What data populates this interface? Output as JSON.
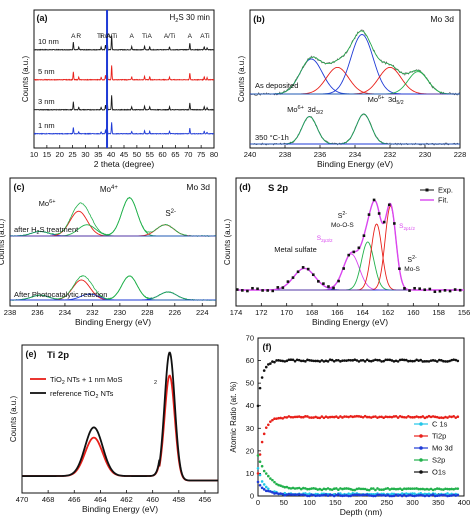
{
  "chart_data": [
    {
      "panel": "(a)",
      "type": "line",
      "title": "H2S 30 min",
      "xlabel": "2 theta (degree)",
      "ylabel": "Counts (a.u.)",
      "xlim": [
        10,
        80
      ],
      "xticks": [
        10,
        15,
        20,
        25,
        30,
        35,
        40,
        45,
        50,
        55,
        60,
        65,
        70,
        75,
        80
      ],
      "series": [
        {
          "name": "10 nm",
          "color": "#1a1a1a"
        },
        {
          "name": "5 nm",
          "color": "#e8201a"
        },
        {
          "name": "3 nm",
          "color": "#1a1a1a"
        },
        {
          "name": "1 nm",
          "color": "#1f3bd6"
        }
      ],
      "peaks": [
        {
          "x": 25.3,
          "h": 0.3
        },
        {
          "x": 27.4,
          "h": 0.1
        },
        {
          "x": 36.1,
          "h": 0.1
        },
        {
          "x": 37.8,
          "h": 0.18
        },
        {
          "x": 38.4,
          "h": 0.7
        },
        {
          "x": 40.2,
          "h": 0.55
        },
        {
          "x": 48.0,
          "h": 0.12
        },
        {
          "x": 53.0,
          "h": 0.14
        },
        {
          "x": 55.0,
          "h": 0.12
        },
        {
          "x": 62.7,
          "h": 0.11
        },
        {
          "x": 70.6,
          "h": 0.26
        },
        {
          "x": 76.2,
          "h": 0.12
        },
        {
          "x": 77.3,
          "h": 0.08
        }
      ],
      "peak_labels": [
        {
          "text": "A",
          "x": 25.3
        },
        {
          "text": "R",
          "x": 27.4
        },
        {
          "text": "Ti",
          "x": 35.5
        },
        {
          "text": "R/A",
          "x": 37.8
        },
        {
          "text": "A/Ti",
          "x": 40.2
        },
        {
          "text": "A",
          "x": 48.0
        },
        {
          "text": "Ti",
          "x": 53.0
        },
        {
          "text": "A",
          "x": 55.0
        },
        {
          "text": "A/Ti",
          "x": 62.7
        },
        {
          "text": "A",
          "x": 70.6
        },
        {
          "text": "A",
          "x": 75.5
        },
        {
          "text": "Ti",
          "x": 77.3
        }
      ]
    },
    {
      "panel": "(b)",
      "type": "line",
      "title": "Mo 3d",
      "xlabel": "Binding Energy (eV)",
      "ylabel": "Counts (a.u.)",
      "xlim": [
        240,
        228
      ],
      "xticks": [
        240,
        238,
        236,
        234,
        232,
        230,
        228
      ],
      "annotations": [
        "As deposited",
        "350 °C-1h",
        "Mo6+ 3d3/2",
        "Mo6+ 3d5/2"
      ],
      "upper_components": [
        {
          "center": 236.5,
          "amp": 0.5,
          "width": 0.9,
          "color": "#1f3bd6"
        },
        {
          "center": 235.0,
          "amp": 0.38,
          "width": 0.9,
          "color": "#e8201a"
        },
        {
          "center": 233.6,
          "amp": 0.85,
          "width": 0.9,
          "color": "#1f3bd6"
        },
        {
          "center": 232.0,
          "amp": 0.38,
          "width": 0.9,
          "color": "#e8201a"
        },
        {
          "center": 230.4,
          "amp": 0.32,
          "width": 0.8,
          "color": "#22b14c"
        }
      ],
      "lower_components": [
        {
          "center": 236.6,
          "amp": 0.55,
          "width": 0.6,
          "color": "#1f3bd6"
        },
        {
          "center": 233.5,
          "amp": 0.6,
          "width": 0.6,
          "color": "#1f3bd6"
        }
      ]
    },
    {
      "panel": "(c)",
      "type": "line",
      "title": "Mo 3d",
      "xlabel": "Binding Energy (eV)",
      "ylabel": "Counts (a.u.)",
      "xlim": [
        238,
        223
      ],
      "xticks": [
        238,
        236,
        234,
        232,
        230,
        228,
        226,
        224
      ],
      "annotations": [
        "Mo4+",
        "Mo6+",
        "S2-",
        "after H2S treatment",
        "After Photocatalytic reaction"
      ],
      "upper_components": [
        {
          "center": 235.8,
          "amp": 0.1,
          "width": 0.9,
          "color": "#1f3bd6"
        },
        {
          "center": 233.0,
          "amp": 0.55,
          "width": 0.9,
          "color": "#e8201a"
        },
        {
          "center": 232.4,
          "amp": 0.25,
          "width": 0.9,
          "color": "#22b14c"
        },
        {
          "center": 229.3,
          "amp": 0.85,
          "width": 0.8,
          "color": "#22b14c"
        },
        {
          "center": 226.7,
          "amp": 0.25,
          "width": 0.9,
          "color": "#e8201a"
        }
      ],
      "lower_components": [
        {
          "center": 235.8,
          "amp": 0.12,
          "width": 0.9,
          "color": "#1f3bd6"
        },
        {
          "center": 232.8,
          "amp": 0.5,
          "width": 0.9,
          "color": "#e8201a"
        },
        {
          "center": 232.2,
          "amp": 0.15,
          "width": 0.9,
          "color": "#1f3bd6"
        },
        {
          "center": 229.3,
          "amp": 0.6,
          "width": 0.8,
          "color": "#22b14c"
        },
        {
          "center": 226.5,
          "amp": 0.2,
          "width": 0.9,
          "color": "#1f3bd6"
        }
      ]
    },
    {
      "panel": "(d)",
      "type": "line",
      "title": "S 2p",
      "xlabel": "Binding Energy (eV)",
      "ylabel": "Counts (a.u.)",
      "xlim": [
        174,
        156
      ],
      "xticks": [
        174,
        172,
        170,
        168,
        166,
        164,
        162,
        160,
        158,
        156
      ],
      "legend": [
        "Exp.",
        "Fit."
      ],
      "annotations": [
        "Metal sulfate",
        "S2 2- Mo-O-S",
        "S2p3/2",
        "S2p1/2",
        "S2- Mo-S"
      ],
      "components": [
        {
          "center": 168.6,
          "amp": 0.18,
          "width": 1.2,
          "color": "#1f3bd6"
        },
        {
          "center": 164.9,
          "amp": 0.3,
          "width": 0.9,
          "color": "#d946ef"
        },
        {
          "center": 163.6,
          "amp": 0.4,
          "width": 0.7,
          "color": "#22b14c"
        },
        {
          "center": 162.9,
          "amp": 0.55,
          "width": 0.6,
          "color": "#e8201a"
        },
        {
          "center": 161.8,
          "amp": 0.7,
          "width": 0.6,
          "color": "#e8201a"
        }
      ]
    },
    {
      "panel": "(e)",
      "type": "line",
      "title": "Ti 2p",
      "xlabel": "Binding Energy (eV)",
      "ylabel": "Counts (a.u.)",
      "xlim": [
        470,
        455
      ],
      "xticks": [
        470,
        468,
        466,
        464,
        462,
        460,
        458,
        456
      ],
      "series": [
        {
          "name": "TiO2 NTs + 1 nm MoS2",
          "color": "#e8201a",
          "peaks": [
            {
              "center": 464.5,
              "amp": 0.3
            },
            {
              "center": 458.7,
              "amp": 0.82
            }
          ]
        },
        {
          "name": "reference TiO2 NTs",
          "color": "#111111",
          "peaks": [
            {
              "center": 464.5,
              "amp": 0.38
            },
            {
              "center": 458.7,
              "amp": 1.0
            }
          ]
        }
      ]
    },
    {
      "panel": "(f)",
      "type": "scatter",
      "xlabel": "Depth (nm)",
      "ylabel": "Atomic Ratio (at. %)",
      "xlim": [
        0,
        400
      ],
      "ylim": [
        0,
        70
      ],
      "xticks": [
        0,
        50,
        100,
        150,
        200,
        250,
        300,
        350,
        400
      ],
      "yticks": [
        0,
        10,
        20,
        30,
        40,
        50,
        60,
        70
      ],
      "series": [
        {
          "name": "C 1s",
          "color": "#22c6e8",
          "start": 12,
          "plateau": 0.8,
          "rate": 0.08
        },
        {
          "name": "Ti2p",
          "color": "#e8201a",
          "start": 10,
          "plateau": 35,
          "rate": 0.1
        },
        {
          "name": "Mo 3d",
          "color": "#1f3bd6",
          "start": 6,
          "plateau": 0.3,
          "rate": 0.06
        },
        {
          "name": "S2p",
          "color": "#22b14c",
          "start": 18,
          "plateau": 3,
          "rate": 0.05
        },
        {
          "name": "O1s",
          "color": "#111111",
          "start": 40,
          "plateau": 60,
          "rate": 0.12
        }
      ]
    }
  ]
}
